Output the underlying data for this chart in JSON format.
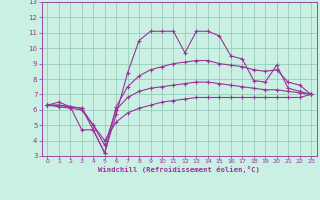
{
  "bg_color": "#caf0e4",
  "grid_color": "#99ccbb",
  "line_color": "#993399",
  "marker": "+",
  "xlabel": "Windchill (Refroidissement éolien,°C)",
  "xlabel_color": "#993399",
  "tick_color": "#993399",
  "xlim": [
    -0.5,
    23.5
  ],
  "ylim": [
    3,
    13
  ],
  "yticks": [
    3,
    4,
    5,
    6,
    7,
    8,
    9,
    10,
    11,
    12,
    13
  ],
  "xticks": [
    0,
    1,
    2,
    3,
    4,
    5,
    6,
    7,
    8,
    9,
    10,
    11,
    12,
    13,
    14,
    15,
    16,
    17,
    18,
    19,
    20,
    21,
    22,
    23
  ],
  "line1_x": [
    0,
    1,
    2,
    3,
    4,
    5,
    6,
    7,
    8,
    9,
    10,
    11,
    12,
    13,
    14,
    15,
    16,
    17,
    18,
    19,
    20,
    21,
    22,
    23
  ],
  "line1_y": [
    6.3,
    6.5,
    6.2,
    4.7,
    4.7,
    3.2,
    5.7,
    8.4,
    10.5,
    11.1,
    11.1,
    11.1,
    9.7,
    11.1,
    11.1,
    10.8,
    9.5,
    9.3,
    7.9,
    7.8,
    8.9,
    7.4,
    7.2,
    7.0
  ],
  "line2_x": [
    0,
    1,
    2,
    3,
    4,
    5,
    6,
    7,
    8,
    9,
    10,
    11,
    12,
    13,
    14,
    15,
    16,
    17,
    18,
    19,
    20,
    21,
    22,
    23
  ],
  "line2_y": [
    6.3,
    6.3,
    6.2,
    6.1,
    4.7,
    3.2,
    6.2,
    7.5,
    8.2,
    8.6,
    8.8,
    9.0,
    9.1,
    9.2,
    9.2,
    9.0,
    8.9,
    8.8,
    8.6,
    8.5,
    8.6,
    7.8,
    7.6,
    7.0
  ],
  "line3_x": [
    0,
    1,
    2,
    3,
    4,
    5,
    6,
    7,
    8,
    9,
    10,
    11,
    12,
    13,
    14,
    15,
    16,
    17,
    18,
    19,
    20,
    21,
    22,
    23
  ],
  "line3_y": [
    6.3,
    6.3,
    6.2,
    6.1,
    5.0,
    3.7,
    6.0,
    6.8,
    7.2,
    7.4,
    7.5,
    7.6,
    7.7,
    7.8,
    7.8,
    7.7,
    7.6,
    7.5,
    7.4,
    7.3,
    7.3,
    7.2,
    7.1,
    7.0
  ],
  "line4_x": [
    0,
    1,
    2,
    3,
    4,
    5,
    6,
    7,
    8,
    9,
    10,
    11,
    12,
    13,
    14,
    15,
    16,
    17,
    18,
    19,
    20,
    21,
    22,
    23
  ],
  "line4_y": [
    6.3,
    6.2,
    6.1,
    6.0,
    5.0,
    4.0,
    5.2,
    5.8,
    6.1,
    6.3,
    6.5,
    6.6,
    6.7,
    6.8,
    6.8,
    6.8,
    6.8,
    6.8,
    6.8,
    6.8,
    6.8,
    6.8,
    6.8,
    7.0
  ]
}
